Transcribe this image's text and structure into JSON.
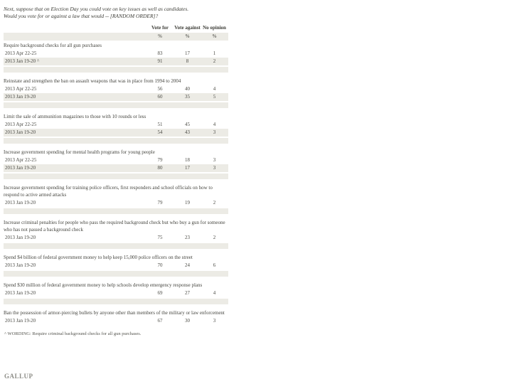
{
  "header": {
    "question_line1": "Next, suppose that on Election Day you could vote on key issues as well as candidates.",
    "question_line2": "Would you vote for or against a law that would -- [RANDOM ORDER]?",
    "columns": [
      "Vote for",
      "Vote against",
      "No opinion"
    ],
    "unit_symbol": "%"
  },
  "sections": [
    {
      "issue": "Require background checks for all gun purchases",
      "rows": [
        {
          "date": "2013 Apr 22-25",
          "vote_for": 83,
          "vote_against": 17,
          "no_opinion": 1
        },
        {
          "date": "2013 Jan 19-20 ^",
          "vote_for": 91,
          "vote_against": 8,
          "no_opinion": 2
        }
      ]
    },
    {
      "issue": "Reinstate and strengthen the ban on assault weapons that was in place from 1994 to 2004",
      "rows": [
        {
          "date": "2013 Apr 22-25",
          "vote_for": 56,
          "vote_against": 40,
          "no_opinion": 4
        },
        {
          "date": "2013 Jan 19-20",
          "vote_for": 60,
          "vote_against": 35,
          "no_opinion": 5
        }
      ]
    },
    {
      "issue": "Limit the sale of ammunition magazines to those with 10 rounds or less",
      "rows": [
        {
          "date": "2013 Apr 22-25",
          "vote_for": 51,
          "vote_against": 45,
          "no_opinion": 4
        },
        {
          "date": "2013 Jan 19-20",
          "vote_for": 54,
          "vote_against": 43,
          "no_opinion": 3
        }
      ]
    },
    {
      "issue": "Increase government spending for mental health programs for young people",
      "rows": [
        {
          "date": "2013 Apr 22-25",
          "vote_for": 79,
          "vote_against": 18,
          "no_opinion": 3
        },
        {
          "date": "2013 Jan 19-20",
          "vote_for": 80,
          "vote_against": 17,
          "no_opinion": 3
        }
      ]
    },
    {
      "issue": "Increase government spending for training police officers, first responders and school officials on how to respond to active armed attacks",
      "rows": [
        {
          "date": "2013 Jan 19-20",
          "vote_for": 79,
          "vote_against": 19,
          "no_opinion": 2
        }
      ]
    },
    {
      "issue": "Increase criminal penalties for people who pass the required background check but who buy a gun for someone who has not passed a background check",
      "rows": [
        {
          "date": "2013 Jan 19-20",
          "vote_for": 75,
          "vote_against": 23,
          "no_opinion": 2
        }
      ]
    },
    {
      "issue": "Spend $4 billion of federal government money to help keep 15,000 police officers on the street",
      "rows": [
        {
          "date": "2013 Jan 19-20",
          "vote_for": 70,
          "vote_against": 24,
          "no_opinion": 6
        }
      ]
    },
    {
      "issue": "Spend $30 million of federal government money to help schools develop emergency response plans",
      "rows": [
        {
          "date": "2013 Jan 19-20",
          "vote_for": 69,
          "vote_against": 27,
          "no_opinion": 4
        }
      ]
    },
    {
      "issue": "Ban the possession of armor-piercing bullets by anyone other than members of the military or law enforcement",
      "rows": [
        {
          "date": "2013 Jan 19-20",
          "vote_for": 67,
          "vote_against": 30,
          "no_opinion": 3
        }
      ]
    }
  ],
  "footnote": "^ WORDING: Require criminal background checks for all gun purchases.",
  "brand": "GALLUP",
  "colors": {
    "row_shade": "#ecebe5",
    "text": "#44443e",
    "brand_gray": "#8e8e88"
  }
}
